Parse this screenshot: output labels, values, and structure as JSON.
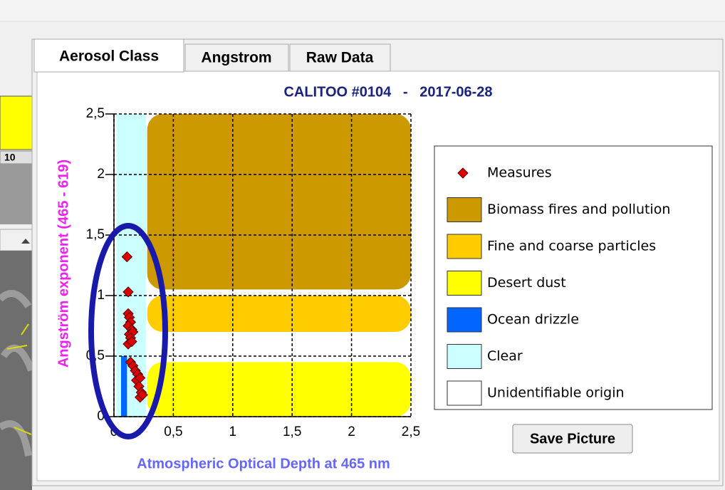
{
  "left_panel": {
    "label": "10"
  },
  "tabs": [
    "Aerosol Class",
    "Angstrom",
    "Raw Data"
  ],
  "button": "Save Picture",
  "chart_data": {
    "type": "scatter",
    "title": "CALITOO #0104   -   2017-06-28",
    "x_label": "Atmospheric Optical Depth at 465 nm",
    "y_label": "Angström exponent (465 - 619)",
    "xlim": [
      0,
      2.5
    ],
    "ylim": [
      0,
      2.5
    ],
    "xticks": [
      0,
      {
        "value": 0.5,
        "label": "0,5"
      },
      1,
      {
        "value": 1.5,
        "label": "1,5"
      },
      2,
      {
        "value": 2.5,
        "label": "2,5"
      }
    ],
    "yticks": [
      0,
      {
        "value": 0.5,
        "label": "0,5"
      },
      1,
      {
        "value": 1.5,
        "label": "1,5"
      },
      2,
      {
        "value": 2.5,
        "label": "2,5"
      }
    ],
    "grid": true,
    "series": [
      {
        "name": "Measures",
        "color": "#dd0000",
        "x": [
          0.11,
          0.12,
          0.12,
          0.13,
          0.14,
          0.12,
          0.15,
          0.13,
          0.16,
          0.14,
          0.12,
          0.15,
          0.14,
          0.16,
          0.18,
          0.2,
          0.19,
          0.22,
          0.21,
          0.23,
          0.22,
          0.24
        ],
        "values": [
          1.32,
          1.03,
          0.85,
          0.82,
          0.78,
          0.75,
          0.72,
          0.68,
          0.7,
          0.65,
          0.6,
          0.62,
          0.45,
          0.42,
          0.38,
          0.35,
          0.3,
          0.32,
          0.25,
          0.2,
          0.16,
          0.18
        ]
      }
    ],
    "regions": [
      {
        "name": "Biomass fires and pollution",
        "color": "#cc9900",
        "x": [
          0.28,
          2.5
        ],
        "y": [
          1.05,
          2.5
        ]
      },
      {
        "name": "Fine and coarse particles",
        "color": "#ffcc00",
        "x": [
          0.28,
          2.5
        ],
        "y": [
          0.7,
          1.0
        ]
      },
      {
        "name": "Desert dust",
        "color": "#ffff00",
        "x": [
          0.28,
          2.5
        ],
        "y": [
          0,
          0.45
        ]
      },
      {
        "name": "Ocean drizzle",
        "color": "#0066ff",
        "x": [
          0.06,
          0.11
        ],
        "y": [
          0,
          0.5
        ]
      },
      {
        "name": "Clear",
        "color": "#ccffff",
        "x": [
          0.02,
          0.27
        ],
        "y": [
          0,
          2.5
        ]
      },
      {
        "name": "Unidentifiable origin",
        "color": "#ffffff"
      }
    ],
    "legend": "right"
  }
}
